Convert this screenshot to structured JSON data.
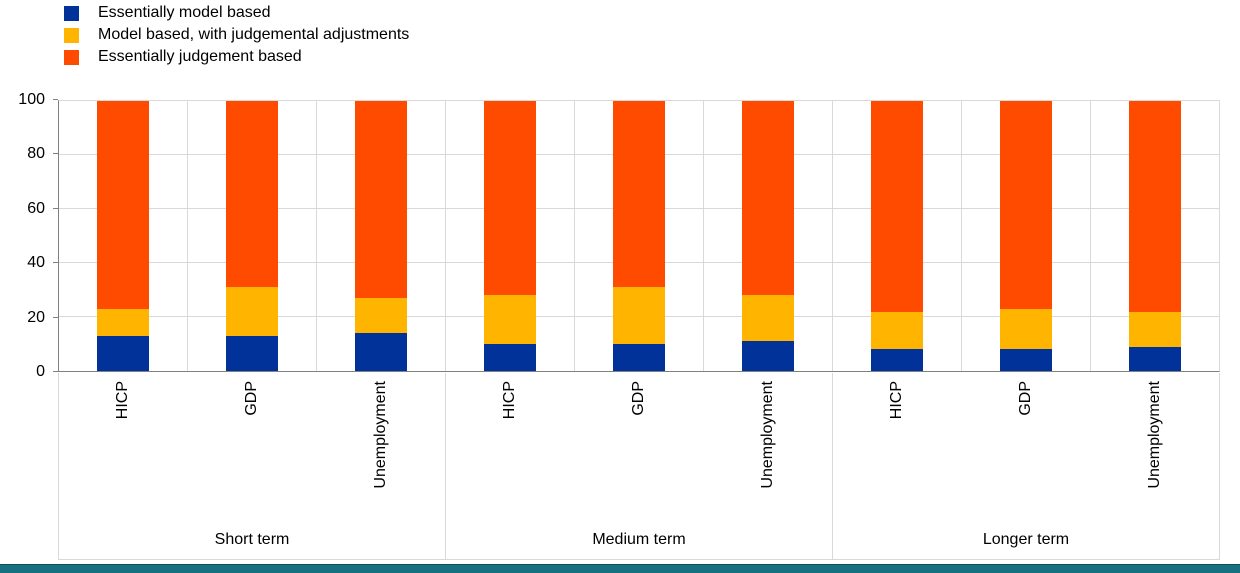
{
  "chart_data": {
    "type": "bar",
    "stacked": true,
    "title": "",
    "xlabel": "",
    "ylabel": "",
    "ylim": [
      0,
      100
    ],
    "yticks": [
      0,
      20,
      40,
      60,
      80,
      100
    ],
    "grid": true,
    "legend_position": "top-left",
    "groups": [
      "Short term",
      "Medium term",
      "Longer term"
    ],
    "categories": [
      "HICP",
      "GDP",
      "Unemployment"
    ],
    "series": [
      {
        "name": "Essentially model based",
        "color": "#003299",
        "values": [
          [
            13,
            13,
            14
          ],
          [
            10,
            10,
            11
          ],
          [
            8,
            8,
            9
          ]
        ]
      },
      {
        "name": "Model based, with judgemental adjustments",
        "color": "#ffb400",
        "values": [
          [
            10,
            18,
            13
          ],
          [
            18,
            21,
            17
          ],
          [
            14,
            15,
            13
          ]
        ]
      },
      {
        "name": "Essentially judgement based",
        "color": "#ff4b00",
        "values": [
          [
            77,
            69,
            73
          ],
          [
            72,
            69,
            72
          ],
          [
            78,
            77,
            78
          ]
        ]
      }
    ]
  },
  "colors": {
    "gridline": "#d9d9d9",
    "axis": "#808080",
    "text": "#000000",
    "bottom_strip": "#17707e"
  }
}
